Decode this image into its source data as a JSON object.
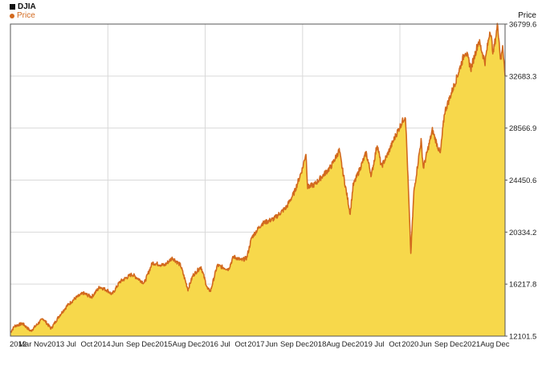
{
  "legend": {
    "title": "DJIA",
    "series_label": "Price"
  },
  "axis": {
    "y_title": "Price"
  },
  "colors": {
    "fill": "#f7d84b",
    "line": "#d2691e",
    "grid": "#d9d9d9",
    "frame": "#555555"
  },
  "chart_data": {
    "type": "area",
    "title": "DJIA",
    "ylabel": "Price",
    "series": [
      {
        "name": "Price",
        "points": [
          [
            "2012-01-01",
            12400
          ],
          [
            "2012-02-01",
            12900
          ],
          [
            "2012-04-01",
            13100
          ],
          [
            "2012-06-01",
            12500
          ],
          [
            "2012-09-01",
            13500
          ],
          [
            "2012-11-01",
            12700
          ],
          [
            "2013-01-01",
            13700
          ],
          [
            "2013-03-01",
            14500
          ],
          [
            "2013-05-01",
            15100
          ],
          [
            "2013-07-01",
            15500
          ],
          [
            "2013-09-01",
            15200
          ],
          [
            "2013-11-01",
            16000
          ],
          [
            "2014-01-01",
            15700
          ],
          [
            "2014-02-01",
            15400
          ],
          [
            "2014-04-01",
            16400
          ],
          [
            "2014-07-01",
            17000
          ],
          [
            "2014-10-01",
            16300
          ],
          [
            "2014-12-01",
            17900
          ],
          [
            "2015-03-01",
            17700
          ],
          [
            "2015-05-01",
            18300
          ],
          [
            "2015-07-01",
            17700
          ],
          [
            "2015-08-25",
            15800
          ],
          [
            "2015-10-01",
            16900
          ],
          [
            "2015-12-01",
            17600
          ],
          [
            "2016-01-20",
            15800
          ],
          [
            "2016-02-11",
            15700
          ],
          [
            "2016-04-01",
            17700
          ],
          [
            "2016-06-24",
            17400
          ],
          [
            "2016-08-01",
            18400
          ],
          [
            "2016-10-01",
            18100
          ],
          [
            "2016-11-08",
            18300
          ],
          [
            "2016-12-15",
            19900
          ],
          [
            "2017-03-01",
            21000
          ],
          [
            "2017-06-01",
            21400
          ],
          [
            "2017-09-01",
            22300
          ],
          [
            "2017-11-01",
            23500
          ],
          [
            "2018-01-01",
            25400
          ],
          [
            "2018-01-26",
            26600
          ],
          [
            "2018-02-08",
            23900
          ],
          [
            "2018-04-01",
            24100
          ],
          [
            "2018-06-01",
            24800
          ],
          [
            "2018-08-01",
            25500
          ],
          [
            "2018-10-03",
            26800
          ],
          [
            "2018-11-01",
            25000
          ],
          [
            "2018-12-24",
            21800
          ],
          [
            "2019-01-15",
            24000
          ],
          [
            "2019-04-23",
            26600
          ],
          [
            "2019-06-01",
            24800
          ],
          [
            "2019-07-15",
            27300
          ],
          [
            "2019-08-15",
            25500
          ],
          [
            "2019-10-01",
            26500
          ],
          [
            "2019-12-01",
            28000
          ],
          [
            "2020-01-15",
            29000
          ],
          [
            "2020-02-12",
            29550
          ],
          [
            "2020-02-28",
            25400
          ],
          [
            "2020-03-23",
            18600
          ],
          [
            "2020-04-15",
            23500
          ],
          [
            "2020-06-08",
            27600
          ],
          [
            "2020-06-25",
            25400
          ],
          [
            "2020-09-01",
            28400
          ],
          [
            "2020-10-30",
            26500
          ],
          [
            "2020-12-01",
            29800
          ],
          [
            "2021-03-01",
            32500
          ],
          [
            "2021-05-07",
            34700
          ],
          [
            "2021-06-18",
            33300
          ],
          [
            "2021-08-15",
            35500
          ],
          [
            "2021-10-01",
            33800
          ],
          [
            "2021-11-08",
            36400
          ],
          [
            "2021-12-01",
            34500
          ],
          [
            "2022-01-04",
            36799.6
          ],
          [
            "2022-01-27",
            33800
          ],
          [
            "2022-02-10",
            35200
          ],
          [
            "2022-02-28",
            32683.3
          ]
        ]
      }
    ],
    "x_ticks": [
      "2012",
      "Mar",
      "Nov",
      "2013",
      "Jul",
      "Oct",
      "2014",
      "Jun",
      "Sep",
      "Dec",
      "2015",
      "Aug",
      "Dec",
      "2016",
      "Jul",
      "Oct",
      "2017",
      "Jun",
      "Sep",
      "Dec",
      "2018",
      "Aug",
      "Dec",
      "2019",
      "Jul",
      "Oct",
      "2020",
      "Jun",
      "Sep",
      "Dec",
      "2021",
      "Aug",
      "Dec"
    ],
    "y_ticks": [
      12101.5,
      16217.8,
      20334.2,
      24450.6,
      28566.9,
      32683.3,
      36799.6
    ],
    "y_tick_labels": [
      "12101.5",
      "16217.8",
      "20334.2",
      "24450.6",
      "28566.9",
      "32683.3",
      "36799.6"
    ],
    "ylim": [
      12101.5,
      36799.6
    ],
    "xlim": [
      "2012-01-01",
      "2022-02-28"
    ],
    "grid": true
  }
}
